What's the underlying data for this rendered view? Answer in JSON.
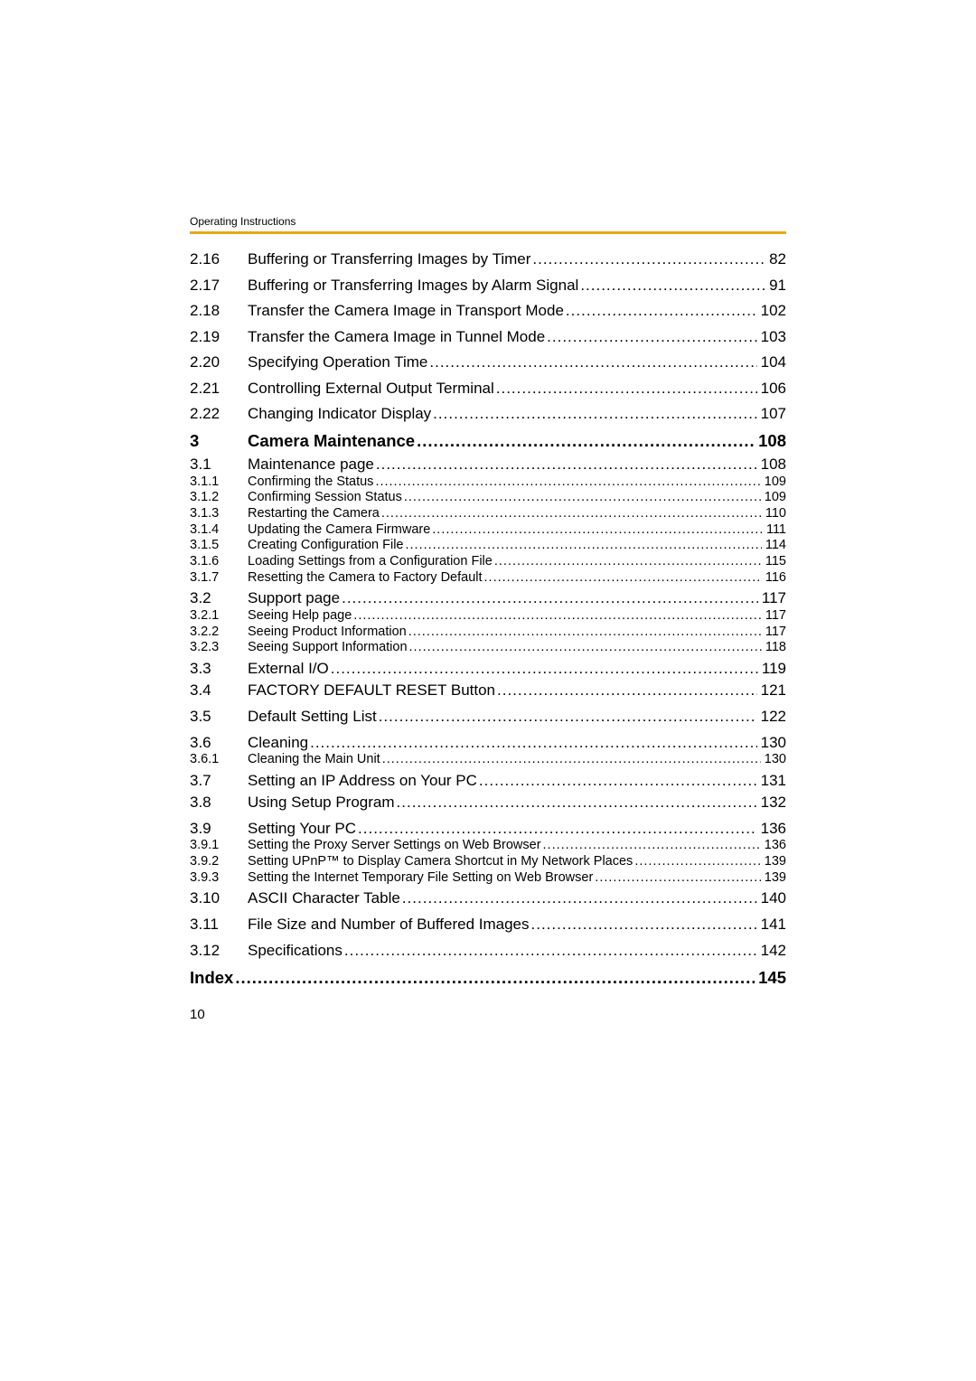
{
  "header": "Operating Instructions",
  "rule_color": "#e6a817",
  "font_sizes": {
    "main": 17,
    "section": 18.5,
    "sub": 17,
    "subsub": 14.5,
    "header": 12,
    "pagenum": 15
  },
  "page_number": "10",
  "entries": [
    {
      "lvl": "main",
      "num": "2.16",
      "title": "Buffering or Transferring Images by Timer",
      "page": "82"
    },
    {
      "lvl": "main",
      "num": "2.17",
      "title": "Buffering or Transferring Images by Alarm Signal",
      "page": "91"
    },
    {
      "lvl": "main",
      "num": "2.18",
      "title": "Transfer the Camera Image in Transport Mode",
      "page": "102"
    },
    {
      "lvl": "main",
      "num": "2.19",
      "title": "Transfer the Camera Image in Tunnel Mode",
      "page": "103"
    },
    {
      "lvl": "main",
      "num": "2.20",
      "title": "Specifying Operation Time",
      "page": "104"
    },
    {
      "lvl": "main",
      "num": "2.21",
      "title": "Controlling External Output Terminal",
      "page": "106"
    },
    {
      "lvl": "main",
      "num": "2.22",
      "title": "Changing Indicator Display",
      "page": "107"
    },
    {
      "lvl": "section",
      "num": "3",
      "title": "Camera Maintenance",
      "page": "108"
    },
    {
      "lvl": "sub",
      "num": "3.1",
      "title": "Maintenance page",
      "page": "108"
    },
    {
      "lvl": "subsub",
      "num": "3.1.1",
      "title": "Confirming the Status",
      "page": "109"
    },
    {
      "lvl": "subsub",
      "num": "3.1.2",
      "title": "Confirming Session Status",
      "page": "109"
    },
    {
      "lvl": "subsub",
      "num": "3.1.3",
      "title": "Restarting the Camera",
      "page": "110"
    },
    {
      "lvl": "subsub",
      "num": "3.1.4",
      "title": "Updating the Camera Firmware",
      "page": "111"
    },
    {
      "lvl": "subsub",
      "num": "3.1.5",
      "title": "Creating Configuration File",
      "page": "114"
    },
    {
      "lvl": "subsub",
      "num": "3.1.6",
      "title": "Loading Settings from a Configuration File",
      "page": "115"
    },
    {
      "lvl": "subsub",
      "num": "3.1.7",
      "title": "Resetting the Camera to Factory Default",
      "page": "116"
    },
    {
      "lvl": "sub",
      "num": "3.2",
      "title": "Support page",
      "page": "117",
      "gap": true
    },
    {
      "lvl": "subsub",
      "num": "3.2.1",
      "title": "Seeing Help page",
      "page": "117"
    },
    {
      "lvl": "subsub",
      "num": "3.2.2",
      "title": "Seeing Product Information",
      "page": "117"
    },
    {
      "lvl": "subsub",
      "num": "3.2.3",
      "title": "Seeing Support Information",
      "page": "118"
    },
    {
      "lvl": "sub",
      "num": "3.3",
      "title": "External I/O",
      "page": "119",
      "gap": true
    },
    {
      "lvl": "main",
      "num": "3.4",
      "title": "FACTORY DEFAULT RESET Button",
      "page": "121",
      "gap": true
    },
    {
      "lvl": "main",
      "num": "3.5",
      "title": "Default Setting List",
      "page": "122"
    },
    {
      "lvl": "sub",
      "num": "3.6",
      "title": "Cleaning",
      "page": "130"
    },
    {
      "lvl": "subsub",
      "num": "3.6.1",
      "title": "Cleaning the Main Unit",
      "page": "130"
    },
    {
      "lvl": "sub",
      "num": "3.7",
      "title": "Setting an IP Address on Your PC",
      "page": "131",
      "gap": true
    },
    {
      "lvl": "main",
      "num": "3.8",
      "title": "Using Setup Program",
      "page": "132",
      "gap": true
    },
    {
      "lvl": "sub",
      "num": "3.9",
      "title": "Setting Your PC",
      "page": "136",
      "gap": true
    },
    {
      "lvl": "subsub",
      "num": "3.9.1",
      "title": "Setting the Proxy Server Settings on Web Browser",
      "page": "136"
    },
    {
      "lvl": "subsub",
      "num": "3.9.2",
      "title": "Setting UPnP™ to Display Camera Shortcut in My Network Places",
      "page": "139"
    },
    {
      "lvl": "subsub",
      "num": "3.9.3",
      "title": "Setting the Internet Temporary File Setting on Web Browser",
      "page": "139"
    },
    {
      "lvl": "main",
      "num": "3.10",
      "title": "ASCII Character Table",
      "page": "140",
      "gap": true
    },
    {
      "lvl": "main",
      "num": "3.11",
      "title": "File Size and Number of Buffered Images",
      "page": "141"
    },
    {
      "lvl": "main",
      "num": "3.12",
      "title": "Specifications",
      "page": "142"
    }
  ],
  "index": {
    "title": "Index",
    "page": "145"
  }
}
